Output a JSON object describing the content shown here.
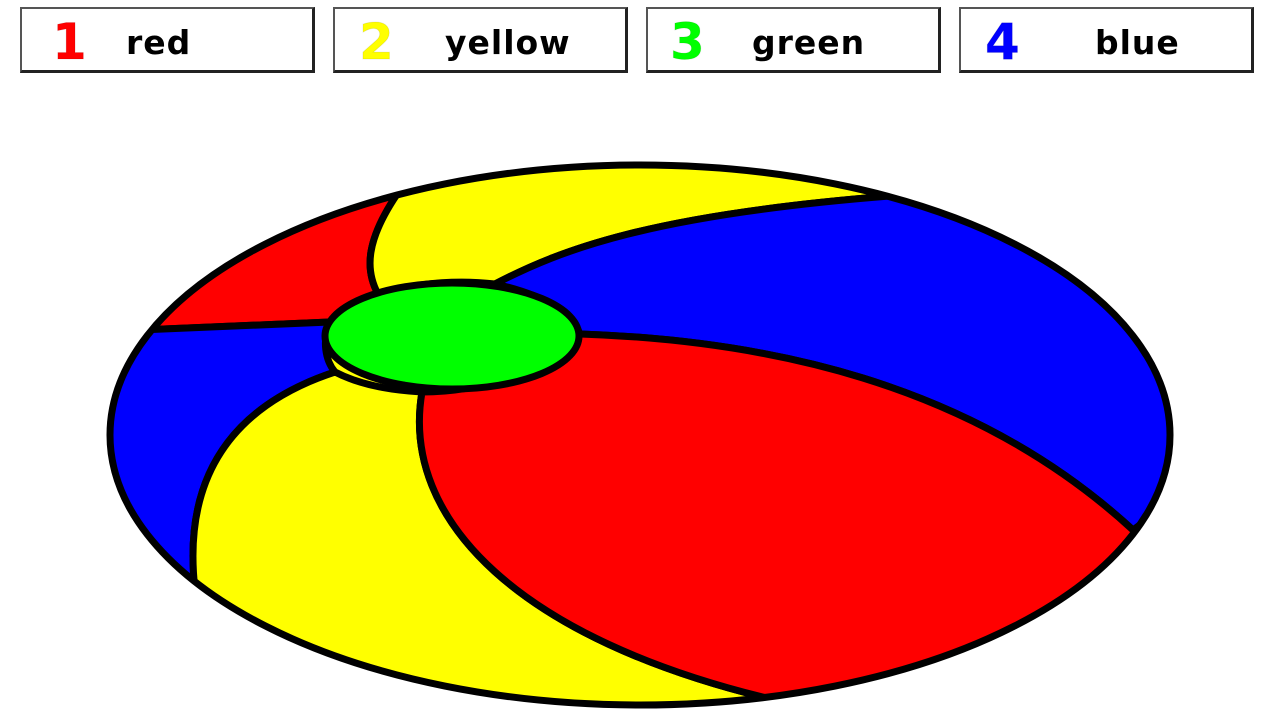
{
  "palette": [
    {
      "number": "1",
      "label": "red",
      "color": "#ff0000"
    },
    {
      "number": "2",
      "label": "yellow",
      "color": "#ffff00"
    },
    {
      "number": "3",
      "label": "green",
      "color": "#00ff00"
    },
    {
      "number": "4",
      "label": "blue",
      "color": "#0000ff"
    }
  ],
  "ball": {
    "regions": [
      {
        "name": "top-left-red-segment",
        "color": "#ff0000"
      },
      {
        "name": "top-yellow-segment",
        "color": "#ffff00"
      },
      {
        "name": "top-right-blue-segment",
        "color": "#0000ff"
      },
      {
        "name": "left-blue-segment",
        "color": "#0000ff"
      },
      {
        "name": "bottom-yellow-segment",
        "color": "#ffff00"
      },
      {
        "name": "bottom-right-red-segment",
        "color": "#ff0000"
      },
      {
        "name": "center-green-cap",
        "color": "#00ff00"
      }
    ],
    "outline_color": "#000000"
  }
}
